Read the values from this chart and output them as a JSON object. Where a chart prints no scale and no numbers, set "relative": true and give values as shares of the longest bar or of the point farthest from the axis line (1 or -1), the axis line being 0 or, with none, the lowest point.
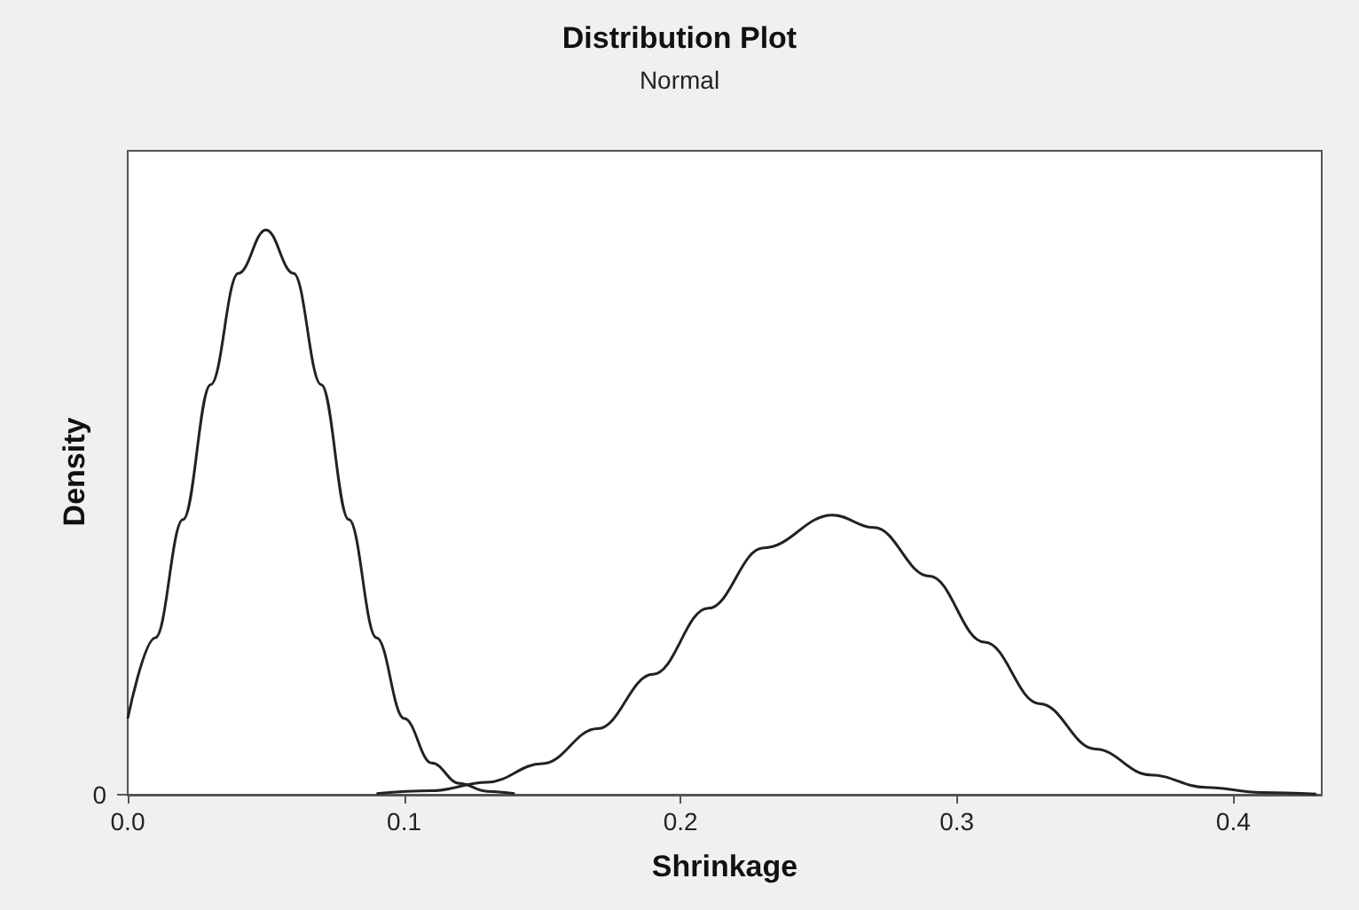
{
  "chart_data": {
    "type": "line",
    "title": "Distribution Plot",
    "subtitle": "Normal",
    "xlabel": "Shrinkage",
    "ylabel": "Density",
    "relative": true,
    "annotations": [
      "0"
    ],
    "xlim": [
      0,
      0.432
    ],
    "xticks": [
      {
        "value": 0,
        "label": "0.0"
      },
      0.1,
      0.2,
      0.3,
      0.4
    ],
    "series": [
      {
        "color": "#222222",
        "x": [
          0,
          0.01,
          0.02,
          0.03,
          0.04,
          0.05,
          0.06,
          0.07,
          0.08,
          0.09,
          0.1,
          0.11,
          0.12,
          0.13,
          0.14
        ],
        "values": [
          0.135,
          0.278,
          0.487,
          0.726,
          0.923,
          1,
          0.923,
          0.726,
          0.487,
          0.278,
          0.135,
          0.056,
          0.02,
          0.006,
          0.002
        ]
      },
      {
        "color": "#222222",
        "x": [
          0.09,
          0.11,
          0.13,
          0.15,
          0.17,
          0.19,
          0.21,
          0.23,
          0.255,
          0.27,
          0.29,
          0.31,
          0.33,
          0.35,
          0.37,
          0.39,
          0.41,
          0.43
        ],
        "values": [
          0.002,
          0.007,
          0.022,
          0.055,
          0.117,
          0.213,
          0.33,
          0.437,
          0.495,
          0.473,
          0.387,
          0.27,
          0.161,
          0.081,
          0.035,
          0.013,
          0.004,
          0.001
        ]
      }
    ],
    "grid": false,
    "marker": "none",
    "line_style": "solid"
  }
}
